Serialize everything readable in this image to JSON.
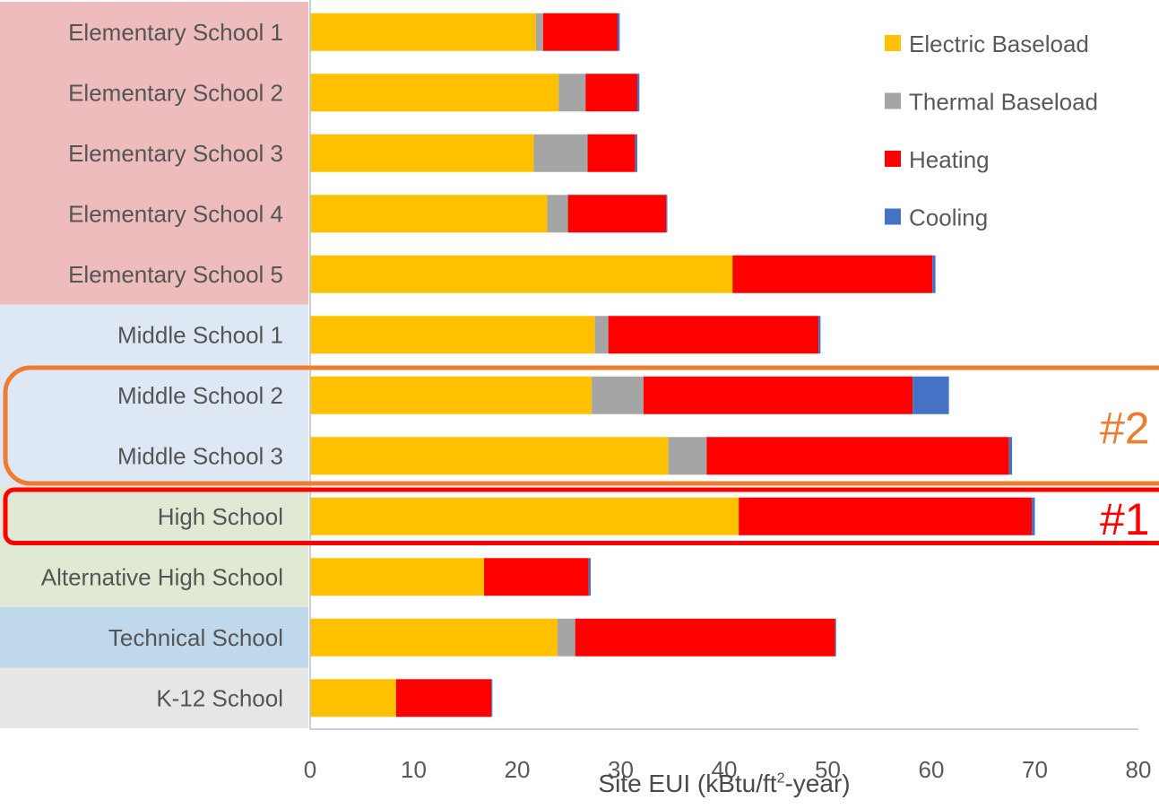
{
  "chart_data": {
    "type": "bar",
    "orientation": "horizontal",
    "stacked": true,
    "categories": [
      "Elementary School 1",
      "Elementary School 2",
      "Elementary School 3",
      "Elementary School 4",
      "Elementary School 5",
      "Middle School 1",
      "Middle School 2",
      "Middle School 3",
      "High School",
      "Alternative High School",
      "Technical School",
      "K-12 School"
    ],
    "category_group_colors": [
      "#eebcbc",
      "#eebcbc",
      "#eebcbc",
      "#eebcbc",
      "#eebcbc",
      "#dde8f4",
      "#dde8f4",
      "#dde8f4",
      "#dfe9d4",
      "#dfe9d4",
      "#bfd8ec",
      "#e6e6e6"
    ],
    "series": [
      {
        "name": "Electric Baseload",
        "color": "#ffc000",
        "values": [
          21.8,
          24.0,
          21.6,
          22.9,
          40.8,
          27.5,
          27.2,
          34.6,
          41.4,
          16.8,
          23.9,
          8.3
        ]
      },
      {
        "name": "Thermal Baseload",
        "color": "#a5a5a5",
        "values": [
          0.7,
          2.6,
          5.2,
          2.0,
          0.0,
          1.3,
          5.0,
          3.7,
          0.0,
          0.0,
          1.7,
          0.0
        ]
      },
      {
        "name": "Heating",
        "color": "#ff0000",
        "values": [
          7.2,
          5.0,
          4.6,
          9.5,
          19.3,
          20.3,
          26.0,
          29.2,
          28.3,
          10.1,
          25.1,
          9.2
        ]
      },
      {
        "name": "Cooling",
        "color": "#4472c4",
        "values": [
          0.2,
          0.2,
          0.2,
          0.1,
          0.3,
          0.2,
          3.5,
          0.3,
          0.3,
          0.2,
          0.1,
          0.1
        ]
      }
    ],
    "xlim": [
      0,
      80
    ],
    "xticks": [
      "0",
      "10",
      "20",
      "30",
      "40",
      "50",
      "60",
      "70",
      "80"
    ],
    "xlabel": "Site EUI (kBtu/ft",
    "xlabel_sup": "2",
    "xlabel_tail": "-year)",
    "legend_position": "top-right",
    "grid": false,
    "annotations": [
      {
        "text": "#2",
        "color": "#ed7d31",
        "rows": [
          "Middle School 2",
          "Middle School 3"
        ]
      },
      {
        "text": "#1",
        "color": "#ff0000",
        "rows": [
          "High School"
        ]
      }
    ]
  }
}
